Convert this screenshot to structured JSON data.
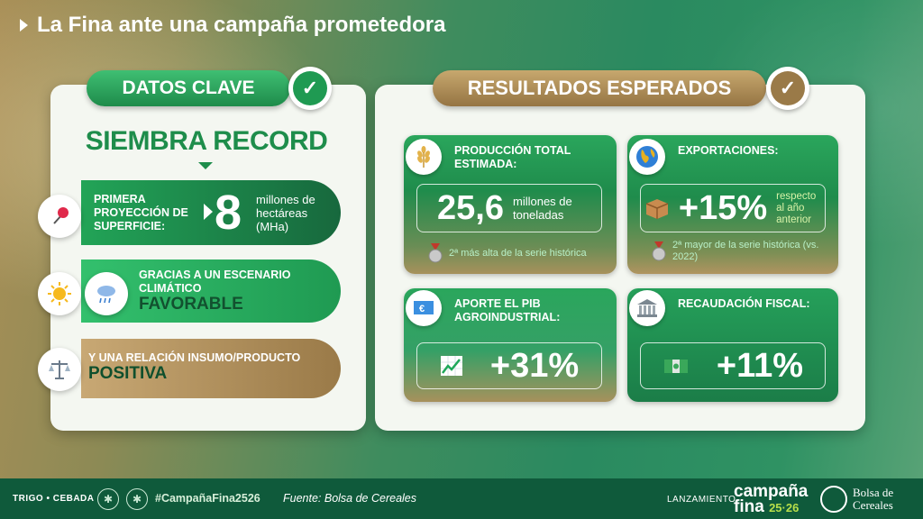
{
  "title": "La Fina ante una campaña prometedora",
  "left": {
    "header": "DATOS CLAVE",
    "headline": "SIEMBRA RECORD",
    "rows": [
      {
        "label": "PRIMERA PROYECCIÓN DE SUPERFICIE:",
        "value": "8",
        "unit": "millones de hectáreas (MHa)",
        "icon": "pin-icon"
      },
      {
        "label": "GRACIAS A UN ESCENARIO CLIMÁTICO",
        "emphasis": "FAVORABLE",
        "icons": [
          "sun-icon",
          "rain-cloud-icon"
        ]
      },
      {
        "label": "Y UNA RELACIÓN INSUMO/PRODUCTO",
        "emphasis": "POSITIVA",
        "icon": "scale-icon"
      }
    ]
  },
  "right": {
    "header": "RESULTADOS ESPERADOS",
    "cards": [
      {
        "title": "PRODUCCIÓN TOTAL ESTIMADA:",
        "value": "25,6",
        "unit": "millones de toneladas",
        "note": "2ª más alta de la serie histórica",
        "icon": "wheat-icon"
      },
      {
        "title": "EXPORTACIONES:",
        "value": "+15%",
        "unit": "respecto al año anterior",
        "note": "2ª mayor de la serie histórica (vs. 2022)",
        "icon": "globe-icon"
      },
      {
        "title": "APORTE EL PIB AGROINDUSTRIAL:",
        "value": "+31%",
        "icon": "money-icon"
      },
      {
        "title": "RECAUDACIÓN FISCAL:",
        "value": "+11%",
        "icon": "bank-icon"
      }
    ]
  },
  "footer": {
    "tags": "TRIGO • CEBADA",
    "hashtag": "#CampañaFina2526",
    "source": "Fuente: Bolsa de Cereales",
    "launch": "LANZAMIENTO",
    "campaign_line1": "campaña",
    "campaign_line2": "fina",
    "campaign_years": "25·26",
    "org": "Bolsa de Cereales"
  }
}
